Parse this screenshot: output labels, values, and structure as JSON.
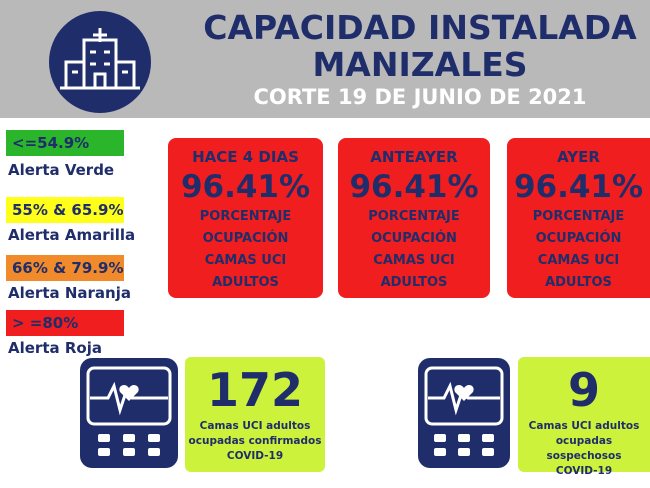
{
  "header": {
    "title": [
      "CAPACIDAD INSTALADA",
      "MANIZALES"
    ],
    "subtitle": "CORTE 19 DE JUNIO DE 2021"
  },
  "legend": [
    {
      "range": "<=54.9%",
      "label": "Alerta Verde"
    },
    {
      "range": "55% & 65.9%",
      "label": "Alerta Amarilla"
    },
    {
      "range": "66% & 79.9%",
      "label": "Alerta Naranja"
    },
    {
      "range": "> =80%",
      "label": "Alerta Roja"
    }
  ],
  "cards": [
    {
      "period": "HACE 4 DIAS",
      "value": "96.41%",
      "description": [
        "PORCENTAJE",
        "OCUPACIÓN",
        "CAMAS UCI",
        "ADULTOS"
      ]
    },
    {
      "period": "ANTEAYER",
      "value": "96.41%",
      "description": [
        "PORCENTAJE",
        "OCUPACIÓN",
        "CAMAS UCI",
        "ADULTOS"
      ]
    },
    {
      "period": "AYER",
      "value": "96.41%",
      "description": [
        "PORCENTAJE",
        "OCUPACIÓN",
        "CAMAS UCI",
        "ADULTOS"
      ]
    }
  ],
  "stats": [
    {
      "value": "172",
      "description": [
        "Camas UCI adultos",
        "ocupadas confirmados",
        "COVID-19"
      ]
    },
    {
      "value": "9",
      "description": [
        "Camas UCI adultos",
        "ocupadas sospechosos",
        "COVID-19"
      ]
    }
  ]
}
